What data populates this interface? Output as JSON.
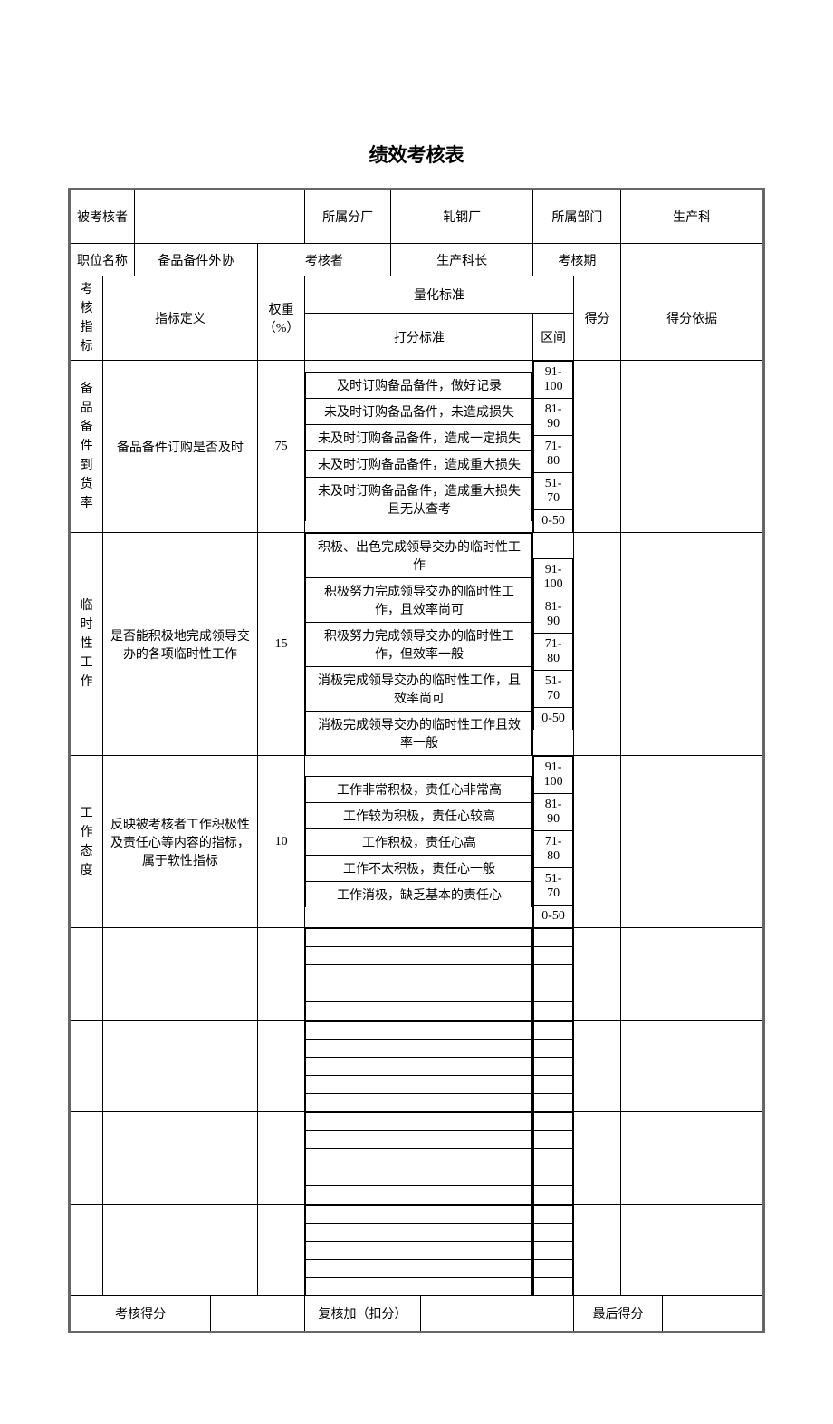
{
  "colors": {
    "page_bg": "#ffffff",
    "border": "#000000",
    "outer_border": "#666666"
  },
  "title": "绩效考核表",
  "header": {
    "assessee_label": "被考核者",
    "assessee_value": "",
    "branch_label": "所属分厂",
    "branch_value": "轧钢厂",
    "dept_label": "所属部门",
    "dept_value": "生产科",
    "position_label": "职位名称",
    "position_value": "备品备件外协",
    "assessor_label": "考核者",
    "assessor_value": "生产科长",
    "period_label": "考核期",
    "period_value": ""
  },
  "cols": {
    "indicator": "考核指标",
    "definition": "指标定义",
    "weight": "权重（%）",
    "quant_std": "量化标准",
    "scoring_std": "打分标准",
    "range": "区间",
    "score": "得分",
    "basis": "得分依据"
  },
  "metrics": [
    {
      "name": "备品备件到货率",
      "definition": "备品备件订购是否及时",
      "weight": "75",
      "criteria": [
        "及时订购备品备件，做好记录",
        "未及时订购备品备件，未造成损失",
        "未及时订购备品备件，造成一定损失",
        "未及时订购备品备件，造成重大损失",
        "未及时订购备品备件，造成重大损失且无从查考"
      ],
      "ranges": [
        "91-100",
        "81-90",
        "71-80",
        "51-70",
        "0-50"
      ]
    },
    {
      "name": "临时性工作",
      "definition": "是否能积极地完成领导交办的各项临时性工作",
      "weight": "15",
      "criteria": [
        "积极、出色完成领导交办的临时性工作",
        "积极努力完成领导交办的临时性工作，且效率尚可",
        "积极努力完成领导交办的临时性工作，但效率一般",
        "消极完成领导交办的临时性工作，且效率尚可",
        "消极完成领导交办的临时性工作且效率一般"
      ],
      "ranges": [
        "91-100",
        "81-90",
        "71-80",
        "51-70",
        "0-50"
      ]
    },
    {
      "name": "工作态度",
      "definition": "反映被考核者工作积极性及责任心等内容的指标，属于软性指标",
      "weight": "10",
      "criteria": [
        "工作非常积极，责任心非常高",
        "工作较为积极，责任心较高",
        "工作积极，责任心高",
        "工作不太积极，责任心一般",
        "工作消极，缺乏基本的责任心"
      ],
      "ranges": [
        "91-100",
        "81-90",
        "71-80",
        "51-70",
        "0-50"
      ]
    }
  ],
  "empty_blocks": 4,
  "empty_lines_per_block": 5,
  "footer": {
    "score_label": "考核得分",
    "score_value": "",
    "adjust_label": "复核加（扣分）",
    "adjust_value": "",
    "final_label": "最后得分",
    "final_value": ""
  }
}
